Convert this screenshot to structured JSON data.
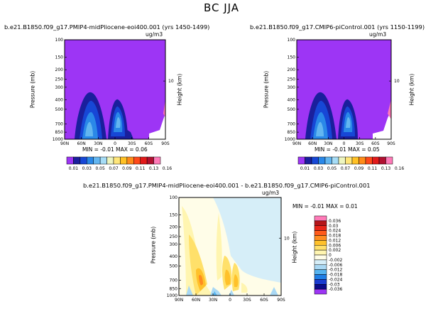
{
  "main_title": "BC JJA",
  "colors": {
    "purple_bg": "#9d35f5",
    "full_bar": [
      "#9d35f5",
      "#1a1f9c",
      "#1747d6",
      "#2a88e8",
      "#63b6f0",
      "#a6dcf6",
      "#eef5bf",
      "#ffe67a",
      "#ffc125",
      "#ff8c1a",
      "#ff4a1a",
      "#e21a1a",
      "#b01030",
      "#ff7ab8"
    ],
    "diff_bar": [
      "#9d35f5",
      "#0b0b8a",
      "#1a3bd0",
      "#1f7fe6",
      "#56b4f0",
      "#a9d8f4",
      "#d6eef8",
      "#fffde8",
      "#fff5b0",
      "#ffe06a",
      "#ffc12a",
      "#ff8c20",
      "#ff5a1a",
      "#e8261a",
      "#b5151a",
      "#ff7ab8"
    ]
  },
  "panels": [
    {
      "title": "b.e21.B1850.f09_g17.PMIP4-midPliocene-eoi400.001 (yrs 1450-1499)",
      "units": "ug/m3",
      "ylabel": "Pressure (mb)",
      "ylabel_right": "Height (km)",
      "stats": "MIN = -0.01   MAX = 0.06"
    },
    {
      "title": "b.e21.B1850.f09_g17.CMIP6-piControl.001 (yrs 1150-1199)",
      "units": "ug/m3",
      "ylabel": "Pressure (mb)",
      "ylabel_right": "Height (km)",
      "stats": "MIN = -0.01   MAX = 0.05"
    },
    {
      "title": "b.e21.B1850.f09_g17.PMIP4-midPliocene-eoi400.001 - b.e21.B1850.f09_g17.CMIP6-piControl.001",
      "units": "ug/m3",
      "ylabel": "Pressure (mb)",
      "ylabel_right": "Height (km)",
      "stats": "MIN = -0.01   MAX = 0.01"
    }
  ],
  "chart_data": {
    "type": "heatmap",
    "x_ticks": [
      "90N",
      "60N",
      "30N",
      "0",
      "30S",
      "60S",
      "90S"
    ],
    "y_ticks": [
      "100",
      "150",
      "200",
      "250",
      "300",
      "400",
      "500",
      "700",
      "850",
      "1000"
    ],
    "right_ticks": [
      "10"
    ],
    "full_levels": [
      "0.01",
      "0.03",
      "0.05",
      "0.07",
      "0.09",
      "0.11",
      "0.13",
      "0.16"
    ],
    "diff_levels": [
      "0.036",
      "0.03",
      "0.024",
      "0.018",
      "0.012",
      "0.006",
      "0.002",
      "0",
      "-0.002",
      "-0.006",
      "-0.012",
      "-0.018",
      "-0.024",
      "-0.03",
      "-0.036"
    ]
  }
}
